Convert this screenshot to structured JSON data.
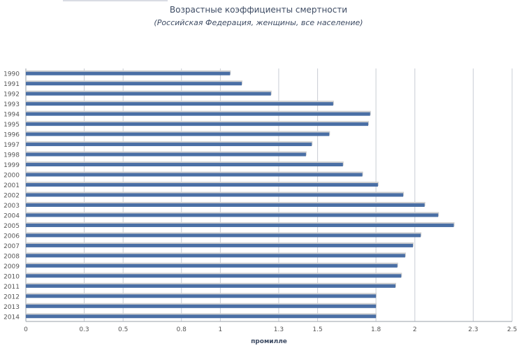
{
  "chart_data": {
    "type": "bar",
    "orientation": "horizontal",
    "title": "Возрастные коэффициенты смертности",
    "subtitle": "(Российская Федерация, женщины, все население)",
    "xlabel": "промилле",
    "ylabel": "",
    "xlim": [
      0,
      2.5
    ],
    "xticks": [
      0,
      0.3,
      0.5,
      0.8,
      1,
      1.3,
      1.5,
      1.8,
      2,
      2.3,
      2.5
    ],
    "grid": true,
    "categories": [
      "1990",
      "1991",
      "1992",
      "1993",
      "1994",
      "1995",
      "1996",
      "1997",
      "1998",
      "1999",
      "2000",
      "2001",
      "2002",
      "2003",
      "2004",
      "2005",
      "2006",
      "2007",
      "2008",
      "2009",
      "2010",
      "2011",
      "2012",
      "2013",
      "2014"
    ],
    "values": [
      1.05,
      1.11,
      1.26,
      1.58,
      1.77,
      1.76,
      1.56,
      1.47,
      1.44,
      1.63,
      1.73,
      1.81,
      1.94,
      2.05,
      2.12,
      2.2,
      2.03,
      1.99,
      1.95,
      1.91,
      1.93,
      1.9,
      1.8,
      1.8,
      1.8
    ],
    "colors": {
      "bar": "#4a6fa5",
      "bar_shadow": "#cfcfcf",
      "grid": "#c8ccd4",
      "axis_text": "#555555",
      "title_text": "#3d4b63"
    }
  }
}
